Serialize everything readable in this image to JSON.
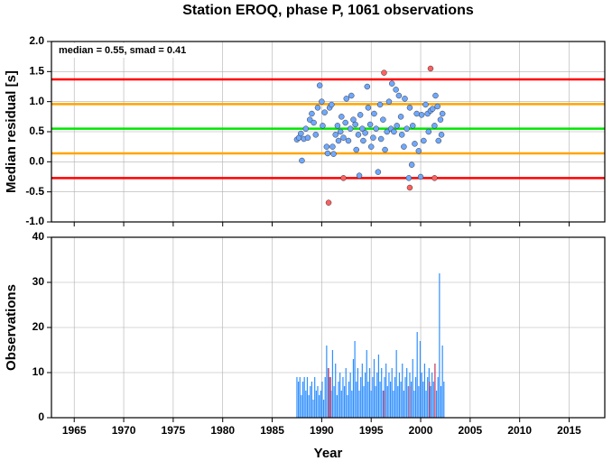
{
  "chart_data": [
    {
      "type": "scatter",
      "title": "Station EROQ, phase P, 1061 observations",
      "ylabel": "Median residual [s]",
      "annotation": "median = 0.55, smad = 0.41",
      "xlim": [
        1962.7,
        2018.6
      ],
      "xticks": [
        1965,
        1970,
        1975,
        1980,
        1985,
        1990,
        1995,
        2000,
        2005,
        2010,
        2015
      ],
      "ylim": [
        -1.0,
        2.0
      ],
      "yticks": [
        {
          "value": -1.0,
          "label": "-1.0"
        },
        {
          "value": -0.5,
          "label": "-0.5"
        },
        {
          "value": 0.0,
          "label": "0.0"
        },
        {
          "value": 0.5,
          "label": "0.5"
        },
        {
          "value": 1.0,
          "label": "1.0"
        },
        {
          "value": 1.5,
          "label": "1.5"
        },
        {
          "value": 2.0,
          "label": "2.0"
        }
      ],
      "grid": true,
      "reference_lines": [
        {
          "value": 1.37,
          "color": "#ff0000"
        },
        {
          "value": 0.96,
          "color": "#ffa500"
        },
        {
          "value": 0.55,
          "color": "#00e600"
        },
        {
          "value": 0.14,
          "color": "#ffa500"
        },
        {
          "value": -0.27,
          "color": "#ff0000"
        }
      ],
      "series": [
        {
          "color": "#6fa8ff",
          "x": [
            1987.5,
            1987.7,
            1987.9,
            1988.0,
            1988.2,
            1988.4,
            1988.6,
            1988.8,
            1989.0,
            1989.2,
            1989.4,
            1989.6,
            1989.8,
            1990.0,
            1990.1,
            1990.3,
            1990.5,
            1990.6,
            1990.8,
            1991.0,
            1991.1,
            1991.2,
            1991.4,
            1991.6,
            1991.7,
            1991.9,
            1992.0,
            1992.2,
            1992.4,
            1992.5,
            1992.7,
            1992.9,
            1993.0,
            1993.2,
            1993.4,
            1993.5,
            1993.7,
            1993.8,
            1993.9,
            1994.1,
            1994.2,
            1994.4,
            1994.6,
            1994.7,
            1994.9,
            1995.0,
            1995.2,
            1995.3,
            1995.5,
            1995.7,
            1995.9,
            1996.0,
            1996.2,
            1996.4,
            1996.6,
            1996.8,
            1997.0,
            1997.1,
            1997.3,
            1997.5,
            1997.6,
            1997.8,
            1998.0,
            1998.1,
            1998.3,
            1998.4,
            1998.6,
            1998.8,
            1998.9,
            1999.1,
            1999.2,
            1999.4,
            1999.6,
            1999.8,
            2000.0,
            2000.1,
            2000.3,
            2000.5,
            2000.7,
            2000.8,
            2001.0,
            2001.2,
            2001.4,
            2001.5,
            2001.7,
            2001.8,
            2002.0,
            2002.1,
            2002.2
          ],
          "values": [
            0.37,
            0.4,
            0.47,
            0.02,
            0.38,
            0.55,
            0.4,
            0.7,
            0.8,
            0.65,
            0.45,
            0.9,
            1.27,
            1.0,
            0.6,
            0.82,
            0.25,
            0.14,
            0.9,
            0.95,
            0.25,
            0.13,
            0.45,
            0.6,
            0.35,
            0.5,
            0.75,
            0.4,
            0.65,
            1.05,
            0.35,
            0.55,
            1.1,
            0.7,
            0.62,
            0.2,
            0.45,
            -0.23,
            0.78,
            0.55,
            0.35,
            0.48,
            1.25,
            0.9,
            0.62,
            0.25,
            0.4,
            0.8,
            0.55,
            -0.17,
            0.95,
            0.38,
            0.7,
            0.2,
            0.5,
            1.0,
            0.55,
            1.3,
            0.5,
            1.2,
            0.6,
            1.1,
            0.75,
            0.45,
            0.25,
            1.05,
            0.55,
            -0.27,
            0.9,
            -0.05,
            0.6,
            0.3,
            0.8,
            0.18,
            -0.25,
            0.78,
            0.35,
            0.95,
            0.8,
            0.5,
            0.85,
            0.88,
            0.6,
            1.1,
            0.92,
            0.35,
            0.7,
            0.45,
            0.8
          ]
        },
        {
          "color": "#ff6060",
          "x": [
            1990.7,
            1992.2,
            1996.3,
            1998.9,
            2001.0,
            2001.4
          ],
          "values": [
            -0.68,
            -0.27,
            1.48,
            -0.43,
            1.55,
            -0.27
          ]
        }
      ]
    },
    {
      "type": "bar",
      "ylabel": "Observations",
      "xlabel": "Year",
      "xlim": [
        1962.7,
        2018.6
      ],
      "xticks": [
        1965,
        1970,
        1975,
        1980,
        1985,
        1990,
        1995,
        2000,
        2005,
        2010,
        2015
      ],
      "ylim": [
        0,
        40
      ],
      "yticks": [
        0,
        10,
        20,
        30,
        40
      ],
      "grid": true,
      "series": [
        {
          "color": "#2f8fff",
          "x": [
            1987.5,
            1987.65,
            1987.8,
            1987.95,
            1988.1,
            1988.25,
            1988.4,
            1988.55,
            1988.7,
            1988.85,
            1989.0,
            1989.15,
            1989.3,
            1989.45,
            1989.6,
            1989.75,
            1989.9,
            1990.05,
            1990.2,
            1990.35,
            1990.5,
            1990.65,
            1990.8,
            1990.95,
            1991.1,
            1991.25,
            1991.4,
            1991.55,
            1991.7,
            1991.85,
            1992.0,
            1992.15,
            1992.3,
            1992.45,
            1992.6,
            1992.75,
            1992.9,
            1993.05,
            1993.2,
            1993.35,
            1993.5,
            1993.65,
            1993.8,
            1993.95,
            1994.1,
            1994.25,
            1994.4,
            1994.55,
            1994.7,
            1994.85,
            1995.0,
            1995.15,
            1995.3,
            1995.45,
            1995.6,
            1995.75,
            1995.9,
            1996.05,
            1996.2,
            1996.35,
            1996.5,
            1996.65,
            1996.8,
            1996.95,
            1997.1,
            1997.25,
            1997.4,
            1997.55,
            1997.7,
            1997.85,
            1998.0,
            1998.15,
            1998.3,
            1998.45,
            1998.6,
            1998.75,
            1998.9,
            1999.05,
            1999.2,
            1999.35,
            1999.5,
            1999.65,
            1999.8,
            1999.95,
            2000.1,
            2000.25,
            2000.4,
            2000.55,
            2000.7,
            2000.85,
            2001.0,
            2001.15,
            2001.3,
            2001.45,
            2001.6,
            2001.75,
            2001.9,
            2002.05,
            2002.2,
            2002.35
          ],
          "values": [
            9,
            8,
            9,
            5,
            8,
            9,
            6,
            9,
            5,
            7,
            8,
            4,
            9,
            6,
            7,
            5,
            6,
            8,
            4,
            9,
            16,
            11,
            9,
            6,
            15,
            7,
            12,
            5,
            8,
            10,
            6,
            9,
            7,
            11,
            5,
            8,
            10,
            6,
            13,
            17,
            8,
            11,
            6,
            9,
            12,
            7,
            10,
            15,
            8,
            11,
            6,
            9,
            13,
            7,
            10,
            14,
            8,
            11,
            6,
            9,
            12,
            7,
            10,
            8,
            11,
            6,
            9,
            15,
            7,
            10,
            8,
            12,
            6,
            9,
            11,
            7,
            10,
            8,
            13,
            6,
            9,
            19,
            7,
            17,
            10,
            8,
            12,
            6,
            9,
            11,
            7,
            10,
            8,
            12,
            6,
            9,
            32,
            7,
            16,
            8
          ]
        },
        {
          "color": "#e0405a",
          "x": [
            1990.7,
            1990.9,
            1996.3,
            1998.9,
            2000.9,
            2001.45
          ],
          "values": [
            11,
            9,
            6,
            7,
            8,
            12
          ]
        }
      ]
    }
  ]
}
